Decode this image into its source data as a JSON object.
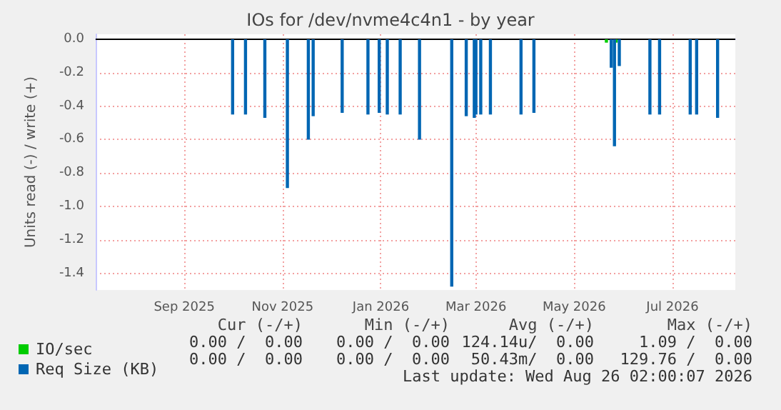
{
  "chart_data": {
    "type": "bar",
    "title": "IOs for /dev/nvme4c4n1 - by year",
    "ylabel": "Units read (-) / write (+)",
    "xlim": [
      "2025-07-23",
      "2026-08-24"
    ],
    "xticks": [
      {
        "value": "2025-09-16",
        "label": "Sep 2025"
      },
      {
        "value": "2025-11-16",
        "label": "Nov 2025"
      },
      {
        "value": "2026-01-16",
        "label": "Jan 2026"
      },
      {
        "value": "2026-03-16",
        "label": "Mar 2026"
      },
      {
        "value": "2026-05-16",
        "label": "May 2026"
      },
      {
        "value": "2026-07-16",
        "label": "Jul 2026"
      }
    ],
    "ylim": [
      -1.5,
      0.03
    ],
    "yticks": [
      {
        "value": 0,
        "label": "0.0"
      },
      {
        "value": -0.2,
        "label": "-0.2"
      },
      {
        "value": -0.4,
        "label": "-0.4"
      },
      {
        "value": -0.6,
        "label": "-0.6"
      },
      {
        "value": -0.8,
        "label": "-0.8"
      },
      {
        "value": -1,
        "label": "-1.0"
      },
      {
        "value": -1.2,
        "label": "-1.2"
      },
      {
        "value": -1.4,
        "label": "-1.4"
      }
    ],
    "grid": true,
    "legend": "bottom left",
    "series": [
      {
        "name": "IO/sec",
        "color": "#00cc00",
        "x": [
          "2026-06-05",
          "2026-06-11"
        ],
        "values": [
          -0.02,
          -0.02
        ]
      },
      {
        "name": "Req Size (KB)",
        "color": "#0066b3",
        "x": [
          "2025-10-16",
          "2025-10-24",
          "2025-11-05",
          "2025-11-19",
          "2025-12-02",
          "2025-12-05",
          "2025-12-23",
          "2026-01-08",
          "2026-01-15",
          "2026-01-20",
          "2026-01-28",
          "2026-02-09",
          "2026-03-01",
          "2026-03-10",
          "2026-03-15",
          "2026-03-16",
          "2026-03-19",
          "2026-03-25",
          "2026-04-13",
          "2026-04-21",
          "2026-06-08",
          "2026-06-10",
          "2026-06-13",
          "2026-07-02",
          "2026-07-08",
          "2026-07-27",
          "2026-07-31",
          "2026-08-13"
        ],
        "values": [
          -0.45,
          -0.45,
          -0.47,
          -0.89,
          -0.6,
          -0.46,
          -0.44,
          -0.45,
          -0.44,
          -0.45,
          -0.45,
          -0.6,
          -1.48,
          -0.46,
          -0.47,
          -0.45,
          -0.45,
          -0.45,
          -0.45,
          -0.44,
          -0.17,
          -0.64,
          -0.16,
          -0.45,
          -0.45,
          -0.45,
          -0.45,
          -0.47
        ]
      }
    ],
    "annotations": [
      "Cur (-/+)",
      "Min (-/+)",
      "Avg (-/+)",
      "Max (-/+)",
      "0.00 /  0.00",
      "0.00 /  0.00",
      "124.14u/  0.00",
      "1.09 /  0.00",
      "0.00 /  0.00",
      "0.00 /  0.00",
      "50.43m/  0.00",
      "129.76 /  0.00",
      "Last update: Wed Aug 26 02:00:07 2026"
    ]
  }
}
